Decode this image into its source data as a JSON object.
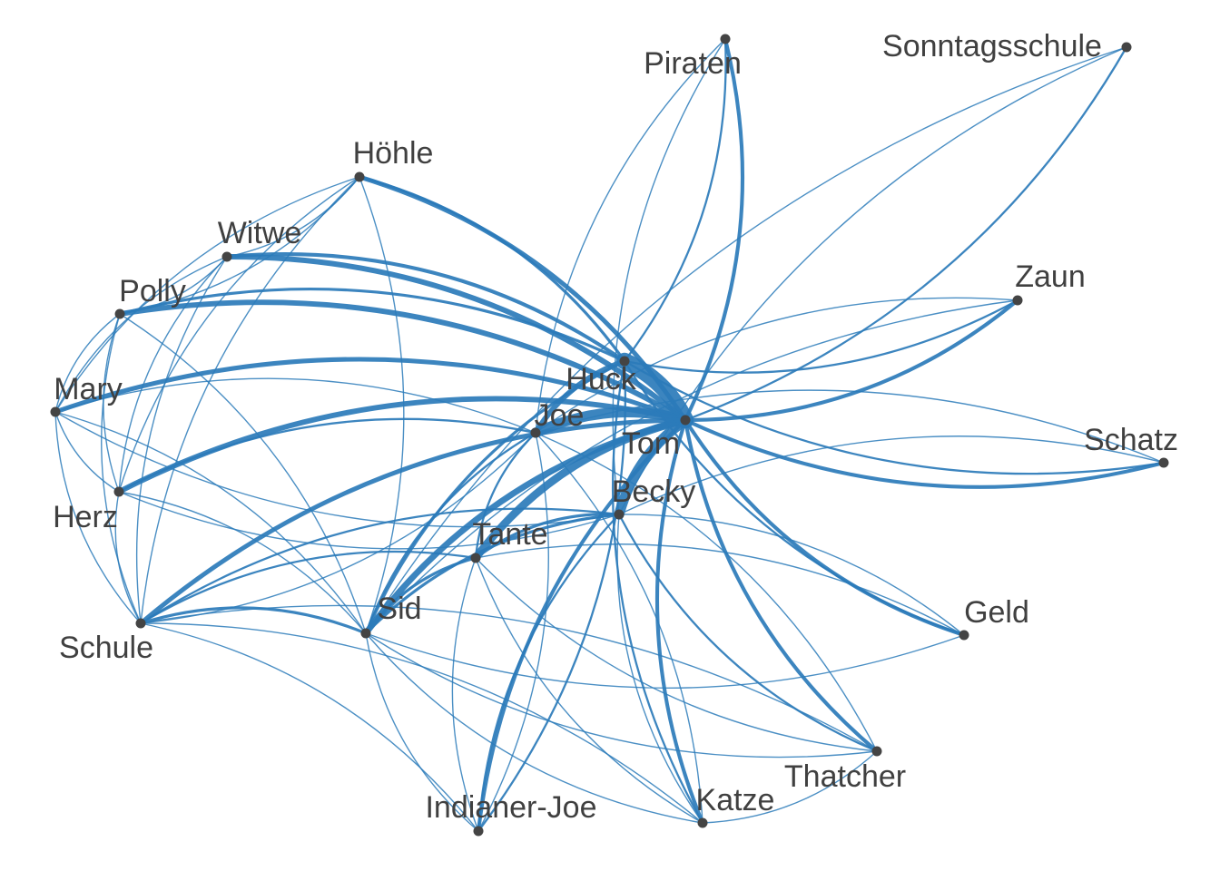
{
  "colors": {
    "edge": "#2b7bba",
    "node": "#444444",
    "label": "#404040",
    "background": "#ffffff"
  },
  "nodes": [
    {
      "id": "Tom",
      "label": "Tom"
    },
    {
      "id": "Huck",
      "label": "Huck"
    },
    {
      "id": "Joe",
      "label": "Joe"
    },
    {
      "id": "Becky",
      "label": "Becky"
    },
    {
      "id": "Tante",
      "label": "Tante"
    },
    {
      "id": "Sid",
      "label": "Sid"
    },
    {
      "id": "Piraten",
      "label": "Piraten"
    },
    {
      "id": "Sonntagsschule",
      "label": "Sonntagsschule"
    },
    {
      "id": "Höhle",
      "label": "Höhle"
    },
    {
      "id": "Witwe",
      "label": "Witwe"
    },
    {
      "id": "Polly",
      "label": "Polly"
    },
    {
      "id": "Zaun",
      "label": "Zaun"
    },
    {
      "id": "Mary",
      "label": "Mary"
    },
    {
      "id": "Schatz",
      "label": "Schatz"
    },
    {
      "id": "Herz",
      "label": "Herz"
    },
    {
      "id": "Geld",
      "label": "Geld"
    },
    {
      "id": "Schule",
      "label": "Schule"
    },
    {
      "id": "Thatcher",
      "label": "Thatcher"
    },
    {
      "id": "Indianer-Joe",
      "label": "Indianer-Joe"
    },
    {
      "id": "Katze",
      "label": "Katze"
    }
  ],
  "edges": [
    {
      "source": "Tom",
      "target": "Huck",
      "weight": 20
    },
    {
      "source": "Tom",
      "target": "Joe",
      "weight": 12
    },
    {
      "source": "Tom",
      "target": "Becky",
      "weight": 12
    },
    {
      "source": "Tom",
      "target": "Tante",
      "weight": 9
    },
    {
      "source": "Tom",
      "target": "Sid",
      "weight": 7
    },
    {
      "source": "Tom",
      "target": "Höhle",
      "weight": 5
    },
    {
      "source": "Tom",
      "target": "Witwe",
      "weight": 6
    },
    {
      "source": "Tom",
      "target": "Polly",
      "weight": 6
    },
    {
      "source": "Tom",
      "target": "Mary",
      "weight": 5
    },
    {
      "source": "Tom",
      "target": "Herz",
      "weight": 6
    },
    {
      "source": "Tom",
      "target": "Schule",
      "weight": 5
    },
    {
      "source": "Tom",
      "target": "Piraten",
      "weight": 4
    },
    {
      "source": "Tom",
      "target": "Zaun",
      "weight": 4
    },
    {
      "source": "Tom",
      "target": "Schatz",
      "weight": 4
    },
    {
      "source": "Tom",
      "target": "Geld",
      "weight": 4
    },
    {
      "source": "Tom",
      "target": "Thatcher",
      "weight": 4
    },
    {
      "source": "Tom",
      "target": "Indianer-Joe",
      "weight": 4
    },
    {
      "source": "Tom",
      "target": "Katze",
      "weight": 4
    },
    {
      "source": "Tom",
      "target": "Sonntagsschule",
      "weight": 2
    },
    {
      "source": "Huck",
      "target": "Joe",
      "weight": 6
    },
    {
      "source": "Huck",
      "target": "Höhle",
      "weight": 3
    },
    {
      "source": "Huck",
      "target": "Witwe",
      "weight": 4
    },
    {
      "source": "Huck",
      "target": "Polly",
      "weight": 3
    },
    {
      "source": "Huck",
      "target": "Piraten",
      "weight": 2
    },
    {
      "source": "Huck",
      "target": "Sid",
      "weight": 3
    },
    {
      "source": "Huck",
      "target": "Geld",
      "weight": 2
    },
    {
      "source": "Huck",
      "target": "Schatz",
      "weight": 2
    },
    {
      "source": "Huck",
      "target": "Zaun",
      "weight": 2
    },
    {
      "source": "Huck",
      "target": "Katze",
      "weight": 2
    },
    {
      "source": "Becky",
      "target": "Tante",
      "weight": 3
    },
    {
      "source": "Becky",
      "target": "Sid",
      "weight": 3
    },
    {
      "source": "Becky",
      "target": "Thatcher",
      "weight": 2
    },
    {
      "source": "Becky",
      "target": "Indianer-Joe",
      "weight": 2
    },
    {
      "source": "Becky",
      "target": "Katze",
      "weight": 1
    },
    {
      "source": "Becky",
      "target": "Schule",
      "weight": 2
    },
    {
      "source": "Joe",
      "target": "Tante",
      "weight": 2
    },
    {
      "source": "Joe",
      "target": "Sid",
      "weight": 2
    },
    {
      "source": "Joe",
      "target": "Herz",
      "weight": 2
    },
    {
      "source": "Joe",
      "target": "Mary",
      "weight": 1
    },
    {
      "source": "Tante",
      "target": "Sid",
      "weight": 3
    },
    {
      "source": "Tante",
      "target": "Schule",
      "weight": 2
    },
    {
      "source": "Tante",
      "target": "Indianer-Joe",
      "weight": 1
    },
    {
      "source": "Tante",
      "target": "Katze",
      "weight": 1
    },
    {
      "source": "Tante",
      "target": "Thatcher",
      "weight": 1
    },
    {
      "source": "Sid",
      "target": "Schule",
      "weight": 3
    },
    {
      "source": "Sid",
      "target": "Herz",
      "weight": 1
    },
    {
      "source": "Sid",
      "target": "Mary",
      "weight": 1
    },
    {
      "source": "Sid",
      "target": "Polly",
      "weight": 1
    },
    {
      "source": "Sid",
      "target": "Höhle",
      "weight": 1
    },
    {
      "source": "Sid",
      "target": "Indianer-Joe",
      "weight": 1
    },
    {
      "source": "Sid",
      "target": "Katze",
      "weight": 1
    },
    {
      "source": "Sid",
      "target": "Thatcher",
      "weight": 1
    },
    {
      "source": "Sid",
      "target": "Geld",
      "weight": 1
    },
    {
      "source": "Polly",
      "target": "Mary",
      "weight": 1
    },
    {
      "source": "Polly",
      "target": "Herz",
      "weight": 1
    },
    {
      "source": "Polly",
      "target": "Witwe",
      "weight": 1
    },
    {
      "source": "Polly",
      "target": "Schule",
      "weight": 1
    },
    {
      "source": "Polly",
      "target": "Höhle",
      "weight": 1
    },
    {
      "source": "Witwe",
      "target": "Höhle",
      "weight": 1
    },
    {
      "source": "Witwe",
      "target": "Mary",
      "weight": 1
    },
    {
      "source": "Witwe",
      "target": "Herz",
      "weight": 1
    },
    {
      "source": "Witwe",
      "target": "Schule",
      "weight": 1
    },
    {
      "source": "Mary",
      "target": "Herz",
      "weight": 1
    },
    {
      "source": "Mary",
      "target": "Schule",
      "weight": 1
    },
    {
      "source": "Herz",
      "target": "Schule",
      "weight": 1
    },
    {
      "source": "Höhle",
      "target": "Mary",
      "weight": 1
    },
    {
      "source": "Höhle",
      "target": "Herz",
      "weight": 1
    },
    {
      "source": "Höhle",
      "target": "Schule",
      "weight": 1
    },
    {
      "source": "Piraten",
      "target": "Becky",
      "weight": 1
    },
    {
      "source": "Piraten",
      "target": "Joe",
      "weight": 1
    },
    {
      "source": "Sonntagsschule",
      "target": "Sid",
      "weight": 1
    },
    {
      "source": "Sonntagsschule",
      "target": "Becky",
      "weight": 1
    },
    {
      "source": "Zaun",
      "target": "Joe",
      "weight": 1
    },
    {
      "source": "Zaun",
      "target": "Sid",
      "weight": 1
    },
    {
      "source": "Schatz",
      "target": "Joe",
      "weight": 1
    },
    {
      "source": "Schatz",
      "target": "Becky",
      "weight": 1
    },
    {
      "source": "Geld",
      "target": "Becky",
      "weight": 1
    },
    {
      "source": "Geld",
      "target": "Tante",
      "weight": 1
    },
    {
      "source": "Thatcher",
      "target": "Schule",
      "weight": 1
    },
    {
      "source": "Thatcher",
      "target": "Joe",
      "weight": 1
    },
    {
      "source": "Indianer-Joe",
      "target": "Schule",
      "weight": 1
    },
    {
      "source": "Indianer-Joe",
      "target": "Huck",
      "weight": 2
    },
    {
      "source": "Indianer-Joe",
      "target": "Joe",
      "weight": 1
    },
    {
      "source": "Katze",
      "target": "Schule",
      "weight": 1
    },
    {
      "source": "Katze",
      "target": "Joe",
      "weight": 1
    },
    {
      "source": "Katze",
      "target": "Thatcher",
      "weight": 1
    },
    {
      "source": "Schule",
      "target": "Joe",
      "weight": 1
    },
    {
      "source": "Herz",
      "target": "Becky",
      "weight": 1
    },
    {
      "source": "Mary",
      "target": "Becky",
      "weight": 1
    }
  ]
}
